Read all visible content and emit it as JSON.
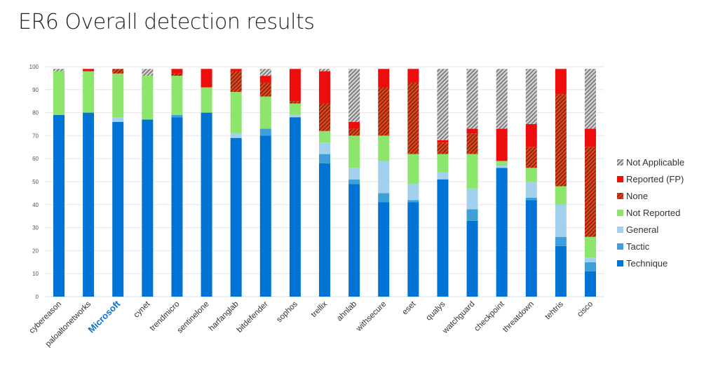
{
  "chart_data": {
    "type": "bar",
    "stacked": true,
    "title": "ER6 Overall detection results",
    "xlabel": "",
    "ylabel": "",
    "ylim": [
      0,
      100
    ],
    "yticks": [
      0,
      10,
      20,
      30,
      40,
      50,
      60,
      70,
      80,
      90,
      100
    ],
    "grid": true,
    "legend_position": "right",
    "highlighted_category": "Microsoft",
    "highlight_color": "#0a6fcf",
    "categories": [
      "cybereason",
      "paloaltonetworks",
      "Microsoft",
      "cynet",
      "trendmicro",
      "sentinelone",
      "harfanglab",
      "bitdefender",
      "sophos",
      "trellix",
      "ahnlab",
      "withsecure",
      "eset",
      "qualys",
      "watchguard",
      "checkpoint",
      "threatdown",
      "tehtris",
      "cisco"
    ],
    "series": [
      {
        "name": "Technique",
        "color": "#0074d4",
        "pattern": "solid",
        "values": [
          79,
          80,
          76,
          77,
          78,
          80,
          69,
          70,
          78,
          58,
          49,
          41,
          41,
          51,
          33,
          56,
          42,
          22,
          11
        ]
      },
      {
        "name": "Tactic",
        "color": "#3f9fd9",
        "pattern": "solid",
        "values": [
          0,
          0,
          0,
          0,
          1,
          0,
          0,
          3,
          0,
          4,
          2,
          4,
          1,
          0,
          5,
          0,
          1,
          4,
          4
        ]
      },
      {
        "name": "General",
        "color": "#a3d0ec",
        "pattern": "solid",
        "values": [
          0,
          0,
          2,
          0,
          0,
          0,
          2,
          0,
          1,
          5,
          5,
          14,
          7,
          3,
          9,
          1,
          7,
          14,
          2
        ]
      },
      {
        "name": "Not Reported",
        "color": "#8ce66c",
        "pattern": "solid",
        "values": [
          19,
          18,
          19,
          19,
          17,
          11,
          18,
          14,
          5,
          5,
          14,
          11,
          13,
          8,
          15,
          2,
          6,
          8,
          9
        ]
      },
      {
        "name": "None",
        "color": "#c0391b",
        "pattern": "hatch",
        "values": [
          0,
          0,
          2,
          0,
          1,
          0,
          9,
          6,
          1,
          12,
          3,
          21,
          31,
          5,
          9,
          0,
          9,
          40,
          39
        ]
      },
      {
        "name": "Reported (FP)",
        "color": "#ee0d0d",
        "pattern": "solid",
        "values": [
          0,
          1,
          0,
          0,
          2,
          8,
          1,
          3,
          14,
          14,
          3,
          8,
          6,
          1,
          2,
          14,
          10,
          11,
          8
        ]
      },
      {
        "name": "Not Applicable",
        "color": "#999999",
        "pattern": "hatch",
        "values": [
          1,
          0,
          0,
          3,
          0,
          0,
          0,
          3,
          0,
          1,
          23,
          0,
          0,
          31,
          26,
          26,
          24,
          0,
          26
        ]
      }
    ]
  }
}
